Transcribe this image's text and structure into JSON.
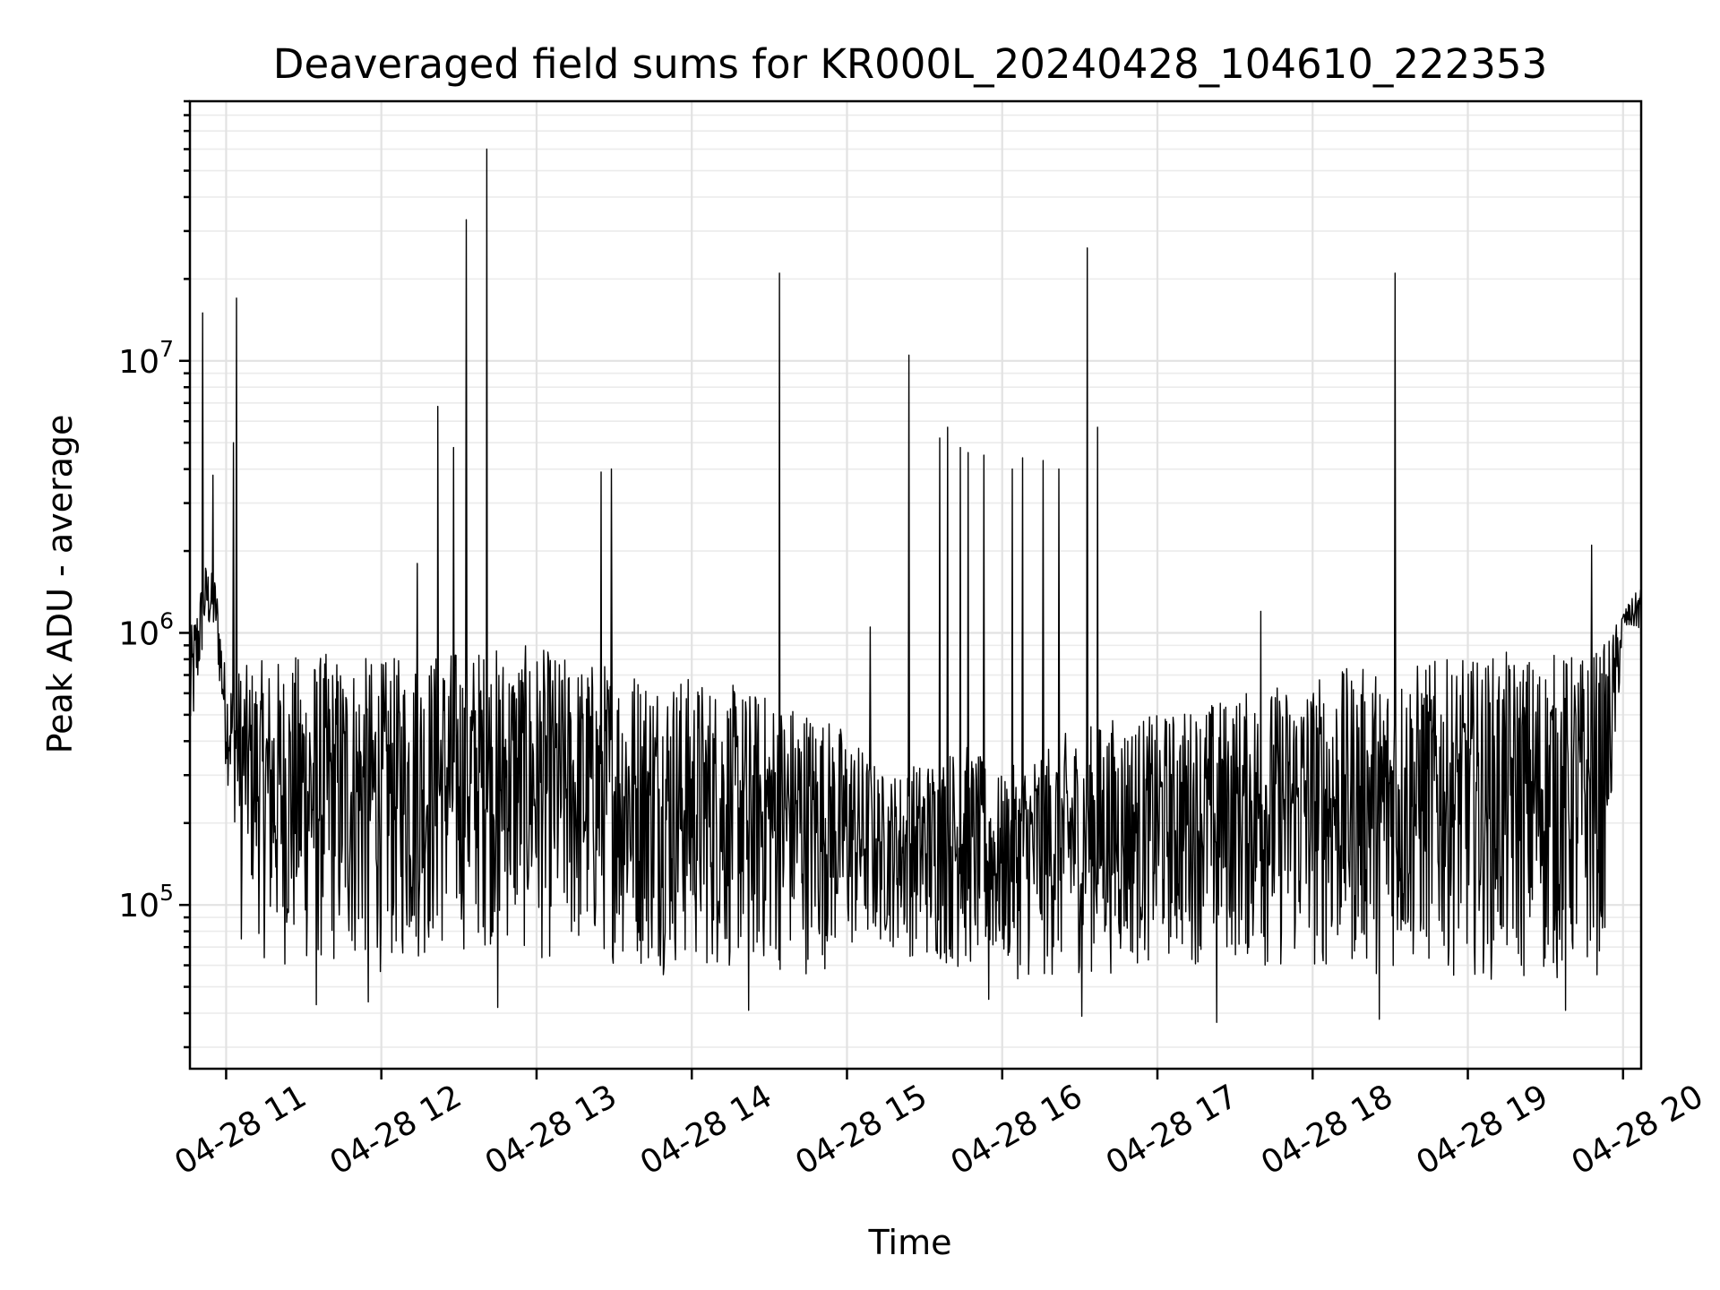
{
  "chart_data": {
    "type": "line",
    "title": "Deaveraged field sums for KR000L_20240428_104610_222353",
    "xlabel": "Time",
    "ylabel": "Peak ADU - average",
    "yscale": "log",
    "xlim": [
      "2024-04-28 10:46",
      "2024-04-28 20:07"
    ],
    "ylim": [
      25000,
      90000000
    ],
    "grid": true,
    "x_ticks": [
      {
        "value": "2024-04-28 11:00",
        "label": "04-28 11"
      },
      {
        "value": "2024-04-28 12:00",
        "label": "04-28 12"
      },
      {
        "value": "2024-04-28 13:00",
        "label": "04-28 13"
      },
      {
        "value": "2024-04-28 14:00",
        "label": "04-28 14"
      },
      {
        "value": "2024-04-28 15:00",
        "label": "04-28 15"
      },
      {
        "value": "2024-04-28 16:00",
        "label": "04-28 16"
      },
      {
        "value": "2024-04-28 17:00",
        "label": "04-28 17"
      },
      {
        "value": "2024-04-28 18:00",
        "label": "04-28 18"
      },
      {
        "value": "2024-04-28 19:00",
        "label": "04-28 19"
      },
      {
        "value": "2024-04-28 20:00",
        "label": "04-28 20"
      }
    ],
    "y_ticks": [
      {
        "value": 100000,
        "base": "10",
        "exp": "5"
      },
      {
        "value": 1000000,
        "base": "10",
        "exp": "6"
      },
      {
        "value": 10000000,
        "base": "10",
        "exp": "7"
      }
    ],
    "series": [
      {
        "color": "#000000",
        "x": [
          "2024-04-28 10:46",
          "2024-04-28 10:52",
          "2024-04-28 10:56",
          "2024-04-28 11:00",
          "2024-04-28 11:05",
          "2024-04-28 11:15",
          "2024-04-28 11:30",
          "2024-04-28 11:45",
          "2024-04-28 12:00",
          "2024-04-28 12:15",
          "2024-04-28 12:30",
          "2024-04-28 12:45",
          "2024-04-28 13:00",
          "2024-04-28 13:15",
          "2024-04-28 13:30",
          "2024-04-28 13:45",
          "2024-04-28 14:00",
          "2024-04-28 14:15",
          "2024-04-28 14:30",
          "2024-04-28 14:45",
          "2024-04-28 15:00",
          "2024-04-28 15:15",
          "2024-04-28 15:30",
          "2024-04-28 15:45",
          "2024-04-28 16:00",
          "2024-04-28 16:15",
          "2024-04-28 16:30",
          "2024-04-28 16:45",
          "2024-04-28 17:00",
          "2024-04-28 17:15",
          "2024-04-28 17:30",
          "2024-04-28 17:45",
          "2024-04-28 18:00",
          "2024-04-28 18:15",
          "2024-04-28 18:30",
          "2024-04-28 18:45",
          "2024-04-28 19:00",
          "2024-04-28 19:15",
          "2024-04-28 19:30",
          "2024-04-28 19:45",
          "2024-04-28 19:52",
          "2024-04-28 20:00",
          "2024-04-28 20:07"
        ],
        "typical_high": [
          1000000,
          1800000,
          1600000,
          700000,
          750000,
          800000,
          850000,
          850000,
          800000,
          850000,
          900000,
          900000,
          900000,
          800000,
          800000,
          750000,
          700000,
          650000,
          600000,
          550000,
          450000,
          300000,
          350000,
          400000,
          300000,
          400000,
          450000,
          500000,
          500000,
          550000,
          600000,
          650000,
          700000,
          750000,
          750000,
          800000,
          800000,
          850000,
          850000,
          850000,
          900000,
          1200000,
          1500000
        ],
        "typical_low": [
          300000,
          1000000,
          900000,
          300000,
          150000,
          60000,
          55000,
          55000,
          55000,
          60000,
          65000,
          70000,
          60000,
          60000,
          60000,
          55000,
          55000,
          55000,
          55000,
          55000,
          60000,
          70000,
          60000,
          55000,
          55000,
          50000,
          55000,
          55000,
          60000,
          60000,
          60000,
          55000,
          55000,
          55000,
          55000,
          55000,
          55000,
          50000,
          50000,
          50000,
          55000,
          1000000,
          1000000
        ]
      }
    ],
    "spikes": [
      {
        "x": "2024-04-28 10:51",
        "y": 15000000
      },
      {
        "x": "2024-04-28 10:55",
        "y": 3800000
      },
      {
        "x": "2024-04-28 11:03",
        "y": 5000000
      },
      {
        "x": "2024-04-28 11:04",
        "y": 17000000
      },
      {
        "x": "2024-04-28 12:14",
        "y": 1800000
      },
      {
        "x": "2024-04-28 12:22",
        "y": 6800000
      },
      {
        "x": "2024-04-28 12:28",
        "y": 4800000
      },
      {
        "x": "2024-04-28 12:33",
        "y": 33000000
      },
      {
        "x": "2024-04-28 12:41",
        "y": 60000000
      },
      {
        "x": "2024-04-28 13:25",
        "y": 3900000
      },
      {
        "x": "2024-04-28 13:29",
        "y": 4000000
      },
      {
        "x": "2024-04-28 14:34",
        "y": 21000000
      },
      {
        "x": "2024-04-28 15:09",
        "y": 1050000
      },
      {
        "x": "2024-04-28 15:24",
        "y": 10500000
      },
      {
        "x": "2024-04-28 15:36",
        "y": 5200000
      },
      {
        "x": "2024-04-28 15:39",
        "y": 5700000
      },
      {
        "x": "2024-04-28 15:44",
        "y": 4800000
      },
      {
        "x": "2024-04-28 15:47",
        "y": 4600000
      },
      {
        "x": "2024-04-28 15:53",
        "y": 4500000
      },
      {
        "x": "2024-04-28 16:04",
        "y": 4000000
      },
      {
        "x": "2024-04-28 16:08",
        "y": 4400000
      },
      {
        "x": "2024-04-28 16:16",
        "y": 4300000
      },
      {
        "x": "2024-04-28 16:22",
        "y": 4000000
      },
      {
        "x": "2024-04-28 16:33",
        "y": 26000000
      },
      {
        "x": "2024-04-28 16:37",
        "y": 5700000
      },
      {
        "x": "2024-04-28 17:40",
        "y": 1200000
      },
      {
        "x": "2024-04-28 18:32",
        "y": 21000000
      },
      {
        "x": "2024-04-28 19:48",
        "y": 2100000
      }
    ],
    "dips": [
      {
        "x": "2024-04-28 11:06",
        "y": 75000
      },
      {
        "x": "2024-04-28 11:35",
        "y": 43000
      },
      {
        "x": "2024-04-28 11:55",
        "y": 44000
      },
      {
        "x": "2024-04-28 12:45",
        "y": 42000
      },
      {
        "x": "2024-04-28 14:22",
        "y": 41000
      },
      {
        "x": "2024-04-28 15:55",
        "y": 45000
      },
      {
        "x": "2024-04-28 16:31",
        "y": 39000
      },
      {
        "x": "2024-04-28 17:23",
        "y": 37000
      },
      {
        "x": "2024-04-28 18:26",
        "y": 38000
      },
      {
        "x": "2024-04-28 19:38",
        "y": 41000
      }
    ]
  }
}
